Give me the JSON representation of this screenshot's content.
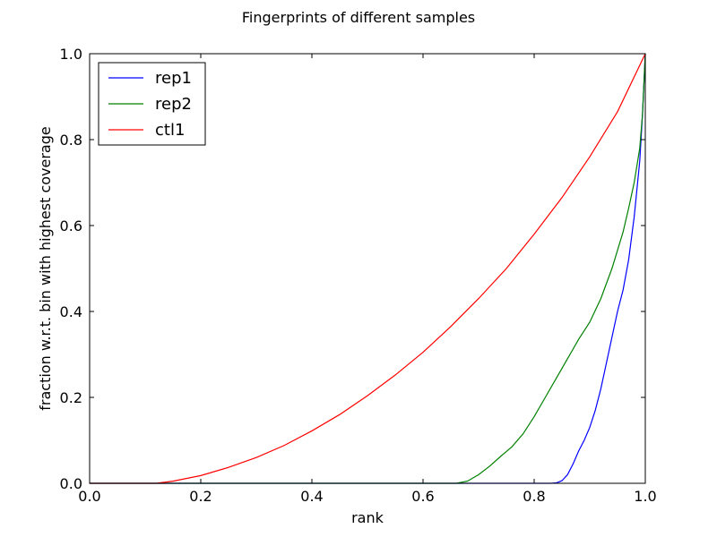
{
  "chart_data": {
    "type": "line",
    "title": "Fingerprints of different samples",
    "xlabel": "rank",
    "ylabel": "fraction w.r.t. bin with highest coverage",
    "xlim": [
      0.0,
      1.0
    ],
    "ylim": [
      0.0,
      1.0
    ],
    "xticks": [
      "0.0",
      "0.2",
      "0.4",
      "0.6",
      "0.8",
      "1.0"
    ],
    "yticks": [
      "0.0",
      "0.2",
      "0.4",
      "0.6",
      "0.8",
      "1.0"
    ],
    "grid": false,
    "legend_position": "top-left",
    "series": [
      {
        "name": "rep1",
        "color": "#0000ff",
        "x": [
          0.0,
          0.83,
          0.84,
          0.85,
          0.86,
          0.87,
          0.88,
          0.89,
          0.9,
          0.91,
          0.92,
          0.93,
          0.94,
          0.95,
          0.96,
          0.97,
          0.98,
          0.99,
          0.995,
          1.0
        ],
        "y": [
          0.0,
          0.0,
          0.001,
          0.006,
          0.02,
          0.045,
          0.075,
          0.1,
          0.13,
          0.17,
          0.22,
          0.28,
          0.34,
          0.4,
          0.45,
          0.52,
          0.62,
          0.75,
          0.86,
          1.0
        ]
      },
      {
        "name": "rep2",
        "color": "#008000",
        "x": [
          0.0,
          0.66,
          0.68,
          0.7,
          0.72,
          0.74,
          0.76,
          0.78,
          0.8,
          0.82,
          0.84,
          0.86,
          0.88,
          0.9,
          0.92,
          0.94,
          0.96,
          0.97,
          0.98,
          0.99,
          0.995,
          1.0
        ],
        "y": [
          0.0,
          0.0,
          0.005,
          0.02,
          0.04,
          0.063,
          0.085,
          0.115,
          0.155,
          0.2,
          0.245,
          0.29,
          0.335,
          0.375,
          0.43,
          0.5,
          0.585,
          0.64,
          0.7,
          0.78,
          0.86,
          1.0
        ]
      },
      {
        "name": "ctl1",
        "color": "#ff0000",
        "x": [
          0.0,
          0.12,
          0.15,
          0.2,
          0.25,
          0.3,
          0.35,
          0.4,
          0.45,
          0.5,
          0.55,
          0.6,
          0.65,
          0.7,
          0.75,
          0.8,
          0.85,
          0.9,
          0.95,
          1.0
        ],
        "y": [
          0.0,
          0.0,
          0.005,
          0.018,
          0.037,
          0.06,
          0.088,
          0.122,
          0.16,
          0.204,
          0.252,
          0.305,
          0.365,
          0.43,
          0.5,
          0.58,
          0.665,
          0.76,
          0.865,
          1.0
        ]
      }
    ]
  }
}
